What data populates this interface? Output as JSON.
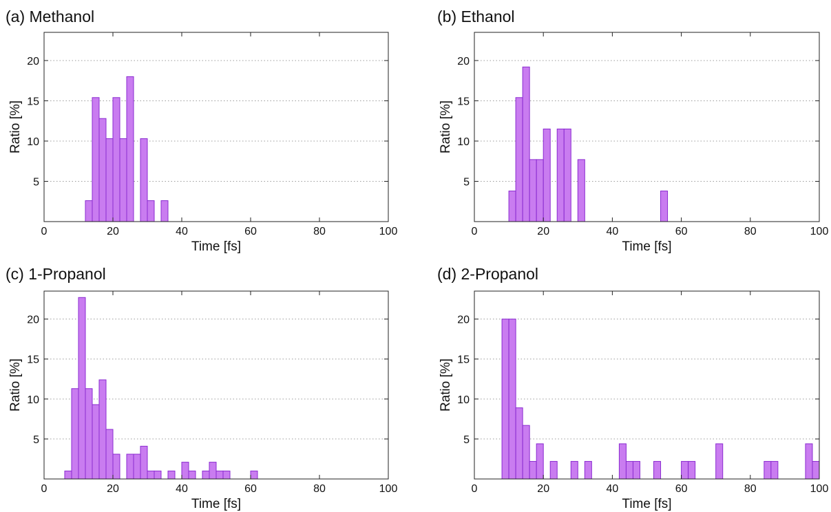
{
  "colors": {
    "bar_fill": "#c97cf0",
    "bar_stroke": "#8a2bd0",
    "grid": "#9a9a9a",
    "axis": "#222222"
  },
  "chart_data": [
    {
      "type": "bar",
      "title": "(a) Methanol",
      "xlabel": "Time [fs]",
      "ylabel": "Ratio [%]",
      "xlim": [
        0,
        100
      ],
      "ylim": [
        0,
        23.5
      ],
      "xticks": [
        0,
        20,
        40,
        60,
        80,
        100
      ],
      "yticks": [
        5,
        10,
        15,
        20
      ],
      "grid": "horizontal dotted",
      "bin_width": 2,
      "bins": [
        {
          "x": 12,
          "value": 2.6
        },
        {
          "x": 14,
          "value": 15.4
        },
        {
          "x": 16,
          "value": 12.8
        },
        {
          "x": 18,
          "value": 10.3
        },
        {
          "x": 20,
          "value": 15.4
        },
        {
          "x": 22,
          "value": 10.3
        },
        {
          "x": 24,
          "value": 18.0
        },
        {
          "x": 28,
          "value": 10.3
        },
        {
          "x": 30,
          "value": 2.6
        },
        {
          "x": 34,
          "value": 2.6
        }
      ]
    },
    {
      "type": "bar",
      "title": "(b) Ethanol",
      "xlabel": "Time [fs]",
      "ylabel": "Ratio [%]",
      "xlim": [
        0,
        100
      ],
      "ylim": [
        0,
        23.5
      ],
      "xticks": [
        0,
        20,
        40,
        60,
        80,
        100
      ],
      "yticks": [
        5,
        10,
        15,
        20
      ],
      "grid": "horizontal dotted",
      "bin_width": 2,
      "bins": [
        {
          "x": 10,
          "value": 3.8
        },
        {
          "x": 12,
          "value": 15.4
        },
        {
          "x": 14,
          "value": 19.2
        },
        {
          "x": 16,
          "value": 7.7
        },
        {
          "x": 18,
          "value": 7.7
        },
        {
          "x": 20,
          "value": 11.5
        },
        {
          "x": 24,
          "value": 11.5
        },
        {
          "x": 26,
          "value": 11.5
        },
        {
          "x": 30,
          "value": 7.7
        },
        {
          "x": 54,
          "value": 3.8
        }
      ]
    },
    {
      "type": "bar",
      "title": "(c) 1-Propanol",
      "xlabel": "Time [fs]",
      "ylabel": "Ratio [%]",
      "xlim": [
        0,
        100
      ],
      "ylim": [
        0,
        23.5
      ],
      "xticks": [
        0,
        20,
        40,
        60,
        80,
        100
      ],
      "yticks": [
        5,
        10,
        15,
        20
      ],
      "grid": "horizontal dotted",
      "bin_width": 2,
      "bins": [
        {
          "x": 6,
          "value": 1.0
        },
        {
          "x": 8,
          "value": 11.3
        },
        {
          "x": 10,
          "value": 22.7
        },
        {
          "x": 12,
          "value": 11.3
        },
        {
          "x": 14,
          "value": 9.3
        },
        {
          "x": 16,
          "value": 12.4
        },
        {
          "x": 18,
          "value": 6.2
        },
        {
          "x": 20,
          "value": 3.1
        },
        {
          "x": 24,
          "value": 3.1
        },
        {
          "x": 26,
          "value": 3.1
        },
        {
          "x": 28,
          "value": 4.1
        },
        {
          "x": 30,
          "value": 1.0
        },
        {
          "x": 32,
          "value": 1.0
        },
        {
          "x": 36,
          "value": 1.0
        },
        {
          "x": 40,
          "value": 2.1
        },
        {
          "x": 42,
          "value": 1.0
        },
        {
          "x": 46,
          "value": 1.0
        },
        {
          "x": 48,
          "value": 2.1
        },
        {
          "x": 50,
          "value": 1.0
        },
        {
          "x": 52,
          "value": 1.0
        },
        {
          "x": 60,
          "value": 1.0
        }
      ]
    },
    {
      "type": "bar",
      "title": "(d) 2-Propanol",
      "xlabel": "Time [fs]",
      "ylabel": "Ratio [%]",
      "xlim": [
        0,
        100
      ],
      "ylim": [
        0,
        23.5
      ],
      "xticks": [
        0,
        20,
        40,
        60,
        80,
        100
      ],
      "yticks": [
        5,
        10,
        15,
        20
      ],
      "grid": "horizontal dotted",
      "bin_width": 2,
      "bins": [
        {
          "x": 8,
          "value": 20.0
        },
        {
          "x": 10,
          "value": 20.0
        },
        {
          "x": 12,
          "value": 8.9
        },
        {
          "x": 14,
          "value": 6.7
        },
        {
          "x": 16,
          "value": 2.2
        },
        {
          "x": 18,
          "value": 4.4
        },
        {
          "x": 22,
          "value": 2.2
        },
        {
          "x": 28,
          "value": 2.2
        },
        {
          "x": 32,
          "value": 2.2
        },
        {
          "x": 42,
          "value": 4.4
        },
        {
          "x": 44,
          "value": 2.2
        },
        {
          "x": 46,
          "value": 2.2
        },
        {
          "x": 52,
          "value": 2.2
        },
        {
          "x": 60,
          "value": 2.2
        },
        {
          "x": 62,
          "value": 2.2
        },
        {
          "x": 70,
          "value": 4.4
        },
        {
          "x": 84,
          "value": 2.2
        },
        {
          "x": 86,
          "value": 2.2
        },
        {
          "x": 96,
          "value": 4.4
        },
        {
          "x": 98,
          "value": 2.2
        }
      ]
    }
  ]
}
